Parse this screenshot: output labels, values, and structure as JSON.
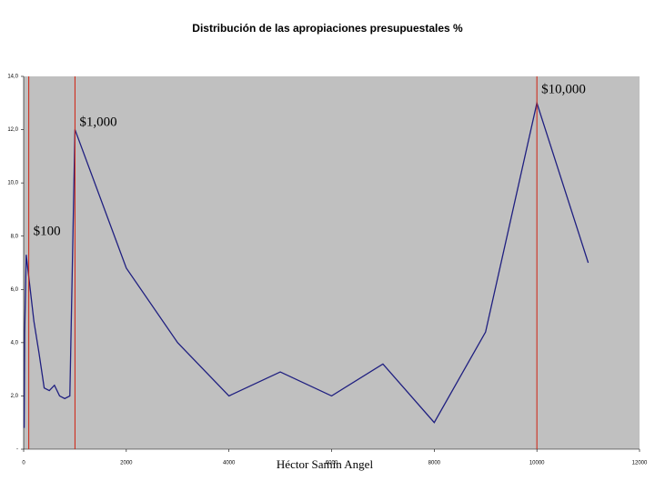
{
  "chart_data": {
    "type": "line",
    "title": "Distribución de las apropiaciones presupuestales %",
    "footer": "Héctor Samin Angel",
    "x": [
      10,
      20,
      50,
      200,
      300,
      400,
      500,
      600,
      700,
      800,
      900,
      1000,
      2000,
      3000,
      4000,
      5000,
      6000,
      7000,
      8000,
      9000,
      10000,
      11000
    ],
    "series": [
      {
        "color": "#1f1f80",
        "values": [
          0.8,
          4.4,
          7.3,
          4.8,
          3.6,
          2.3,
          2.2,
          2.4,
          2.0,
          1.9,
          2.0,
          12.0,
          6.8,
          4.0,
          2.0,
          2.9,
          2.0,
          3.2,
          1.0,
          4.4,
          13.0,
          7.0
        ]
      }
    ],
    "xlim": [
      0,
      12000
    ],
    "xticks": [
      0,
      2000,
      4000,
      6000,
      8000,
      10000,
      12000
    ],
    "ylim": [
      0,
      14
    ],
    "yticks": [
      {
        "value": 0,
        "label": "-"
      },
      {
        "value": 2,
        "label": "2,0"
      },
      {
        "value": 4,
        "label": "4,0"
      },
      {
        "value": 6,
        "label": "6,0"
      },
      {
        "value": 8,
        "label": "8,0"
      },
      {
        "value": 10,
        "label": "10,0"
      },
      {
        "value": 12,
        "label": "12,0"
      },
      {
        "value": 14,
        "label": "14,0"
      }
    ],
    "vlines": [
      {
        "x": 100,
        "label": "$100"
      },
      {
        "x": 1000,
        "label": "$1,000"
      },
      {
        "x": 10000,
        "label": "$10,000"
      }
    ],
    "vline_color": "#d02010",
    "plot_background": "#c0c0c0"
  }
}
